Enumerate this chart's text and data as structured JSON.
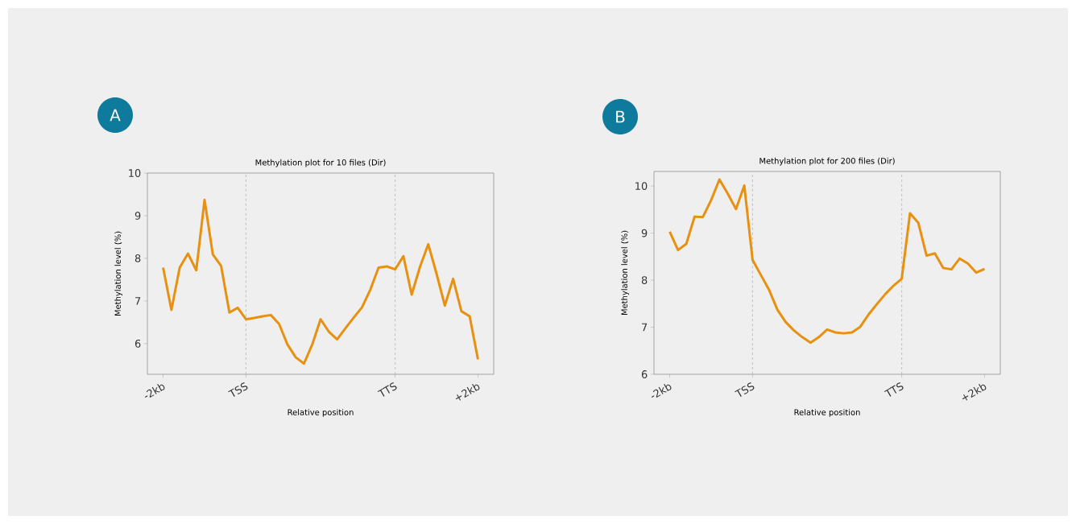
{
  "chart_data": [
    {
      "type": "line",
      "title": "Methylation plot for 10 files (Dir)",
      "xlabel": "Relative position",
      "ylabel": "Methylation level (%)",
      "annotations": [
        "A"
      ],
      "color": "#e8900f",
      "categories": [
        "-2kb",
        null,
        null,
        null,
        null,
        null,
        null,
        null,
        null,
        null,
        "TSS",
        null,
        null,
        null,
        null,
        null,
        null,
        null,
        null,
        null,
        null,
        null,
        null,
        null,
        null,
        null,
        null,
        null,
        "TTS",
        null,
        null,
        null,
        null,
        null,
        null,
        null,
        null,
        null,
        "+2kb"
      ],
      "values": [
        7.78,
        6.79,
        7.78,
        8.11,
        7.72,
        9.37,
        8.09,
        7.82,
        6.73,
        6.84,
        6.57,
        6.6,
        6.64,
        6.67,
        6.46,
        5.98,
        5.68,
        5.53,
        5.98,
        6.57,
        6.28,
        6.1,
        6.36,
        6.61,
        6.85,
        7.26,
        7.78,
        7.81,
        7.74,
        8.05,
        7.15,
        7.8,
        8.33,
        7.64,
        6.89,
        7.52,
        6.76,
        6.64,
        5.63
      ],
      "ylim": [
        5.28,
        10
      ],
      "yticks": [
        6,
        7,
        8,
        9,
        10
      ],
      "ref_lines": [
        {
          "axis": "x",
          "value": "TSS",
          "color": "#c4c8cc",
          "line_style": "dashed"
        },
        {
          "axis": "x",
          "value": "TTS",
          "color": "#c4c8cc",
          "line_style": "dashed"
        }
      ]
    },
    {
      "type": "line",
      "title": "Methylation plot for 200 files (Dir)",
      "xlabel": "Relative position",
      "ylabel": "Methylation level (%)",
      "annotations": [
        "B"
      ],
      "color": "#e8900f",
      "categories": [
        "-2kb",
        null,
        null,
        null,
        null,
        null,
        null,
        null,
        null,
        null,
        "TSS",
        null,
        null,
        null,
        null,
        null,
        null,
        null,
        null,
        null,
        null,
        null,
        null,
        null,
        null,
        null,
        null,
        null,
        "TTS",
        null,
        null,
        null,
        null,
        null,
        null,
        null,
        null,
        null,
        "+2kb"
      ],
      "values": [
        9.03,
        8.64,
        8.77,
        9.35,
        9.34,
        9.7,
        10.14,
        9.84,
        9.51,
        10.01,
        8.43,
        8.11,
        7.79,
        7.37,
        7.11,
        6.93,
        6.79,
        6.67,
        6.79,
        6.95,
        6.89,
        6.87,
        6.89,
        7.01,
        7.27,
        7.49,
        7.7,
        7.88,
        8.03,
        9.42,
        9.22,
        8.52,
        8.57,
        8.26,
        8.23,
        8.46,
        8.35,
        8.16,
        8.24
      ],
      "ylim": [
        6,
        10.31
      ],
      "yticks": [
        6,
        7,
        8,
        9,
        10
      ],
      "ref_lines": [
        {
          "axis": "x",
          "value": "TSS",
          "color": "#c4c8cc",
          "line_style": "dashed"
        },
        {
          "axis": "x",
          "value": "TTS",
          "color": "#c4c8cc",
          "line_style": "dashed"
        }
      ]
    }
  ]
}
